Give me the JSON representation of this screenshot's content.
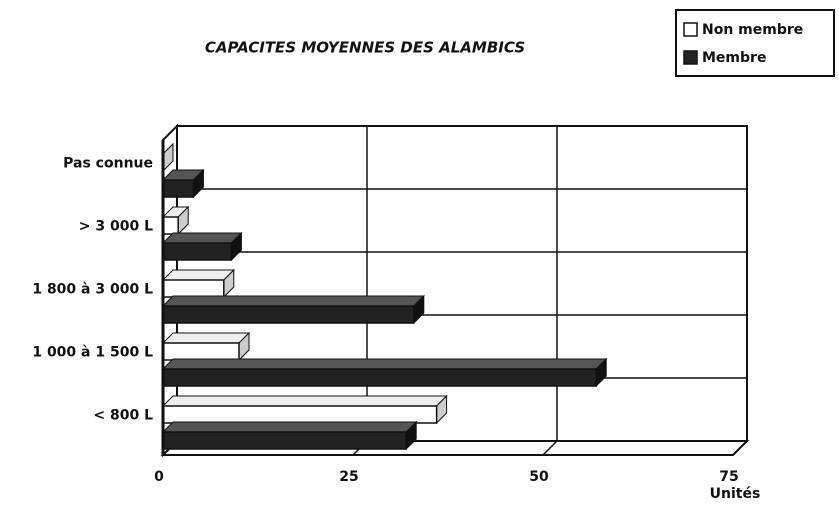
{
  "chart_data": {
    "type": "bar",
    "orientation": "horizontal",
    "title": "CAPACITES MOYENNES DES ALAMBICS",
    "categories": [
      "Pas connue",
      "> 3 000 L",
      "1 800 à 3 000 L",
      "1 000 à 1 500 L",
      "< 800 L"
    ],
    "series": [
      {
        "name": "Non membre",
        "color": "#ffffff",
        "values": [
          0,
          2,
          8,
          10,
          36
        ]
      },
      {
        "name": "Membre",
        "color": "#222222",
        "values": [
          4,
          9,
          33,
          57,
          32
        ]
      }
    ],
    "xlabel": "Unités",
    "xlim": [
      0,
      75
    ],
    "xticks": [
      0,
      25,
      50,
      75
    ],
    "grid": true,
    "legend": "top-right"
  }
}
